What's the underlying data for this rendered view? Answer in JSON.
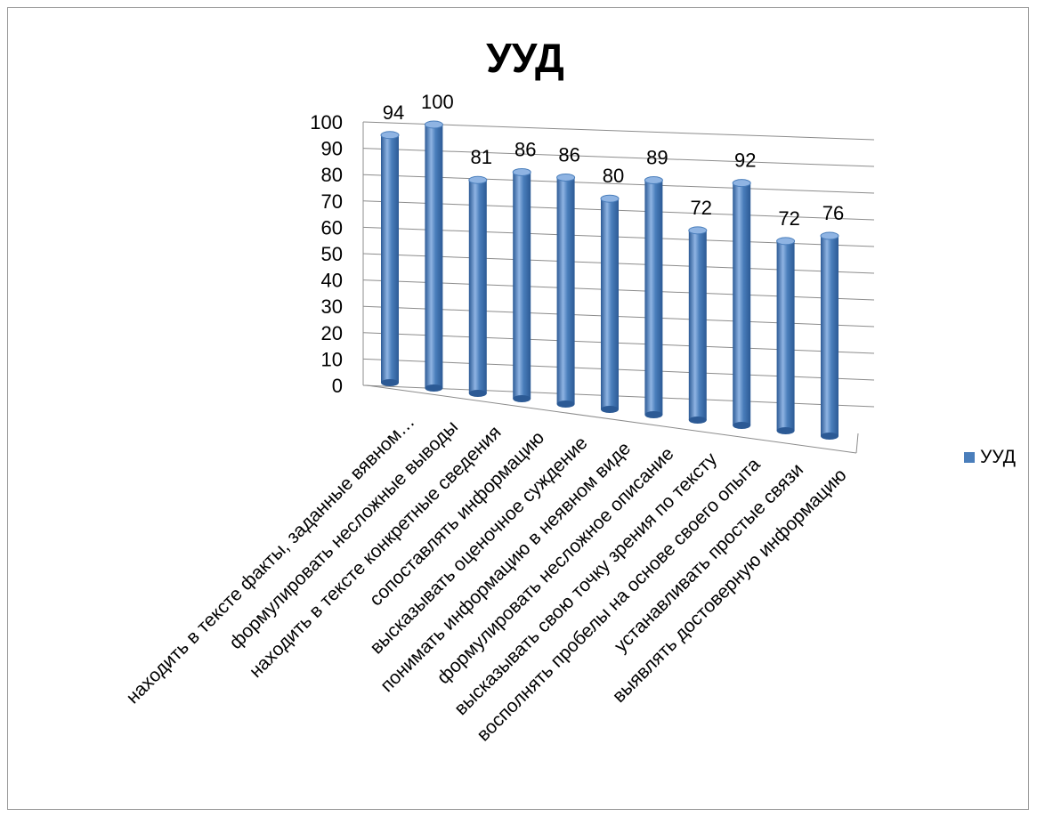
{
  "chart_data": {
    "type": "bar",
    "title": "УУД",
    "categories": [
      "находить в тексте факты, заданные вявном…",
      "формулировать несложные выводы",
      "находить в тексте конкретные сведения",
      "сопоставлять информацию",
      "высказывать оценочное суждение",
      "понимать информацию в неявном виде",
      "формулировать несложное описание",
      "высказывать свою точку зрения по тексту",
      "восполнять пробелы на основе своего опыта",
      "устанавливать простые связи",
      "выявлять достоверную информацию"
    ],
    "series": [
      {
        "name": "УУД",
        "values": [
          94,
          100,
          81,
          86,
          86,
          80,
          89,
          72,
          92,
          72,
          76
        ]
      }
    ],
    "data_labels": [
      "94",
      "100",
      "81",
      "86",
      "86",
      "80",
      "89",
      "72",
      "92",
      "72",
      "76"
    ],
    "ylim": [
      0,
      100
    ],
    "yticks": [
      0,
      10,
      20,
      30,
      40,
      50,
      60,
      70,
      80,
      90,
      100
    ],
    "xlabel": "",
    "ylabel": "",
    "grid": true,
    "legend_position": "right",
    "style": "3d-cylinder",
    "colors": {
      "bar": "#4a7ebb",
      "bar_dark": "#2c5a95",
      "bar_light": "#8fb4e3",
      "grid": "#8c8c8c"
    }
  }
}
